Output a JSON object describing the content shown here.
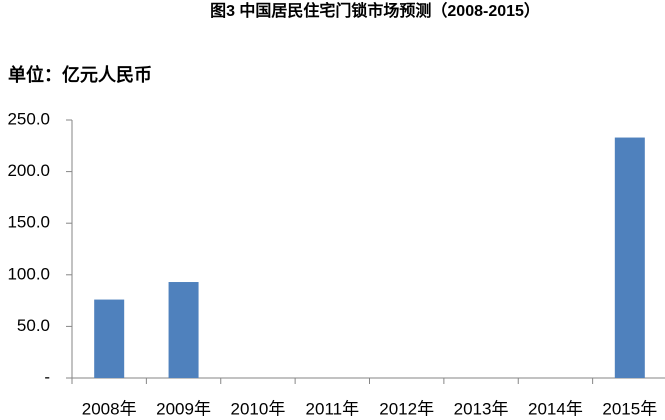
{
  "chart_data": {
    "type": "bar",
    "title": "图3 中国居民住宅门锁市场预测（2008-2015）",
    "subtitle": "单位：亿元人民币",
    "categories": [
      "2008年",
      "2009年",
      "2010年",
      "2011年",
      "2012年",
      "2013年",
      "2014年",
      "2015年"
    ],
    "values": [
      76,
      93,
      null,
      null,
      null,
      null,
      null,
      233
    ],
    "color": "#4f81bd",
    "ylim": [
      0,
      250
    ],
    "yticks": [
      {
        "value": 0,
        "label": "-"
      },
      {
        "value": 50,
        "label": "50.0"
      },
      {
        "value": 100,
        "label": "100.0"
      },
      {
        "value": 150,
        "label": "150.0"
      },
      {
        "value": 200,
        "label": "200.0"
      },
      {
        "value": 250,
        "label": "250.0"
      }
    ],
    "grid": false
  }
}
